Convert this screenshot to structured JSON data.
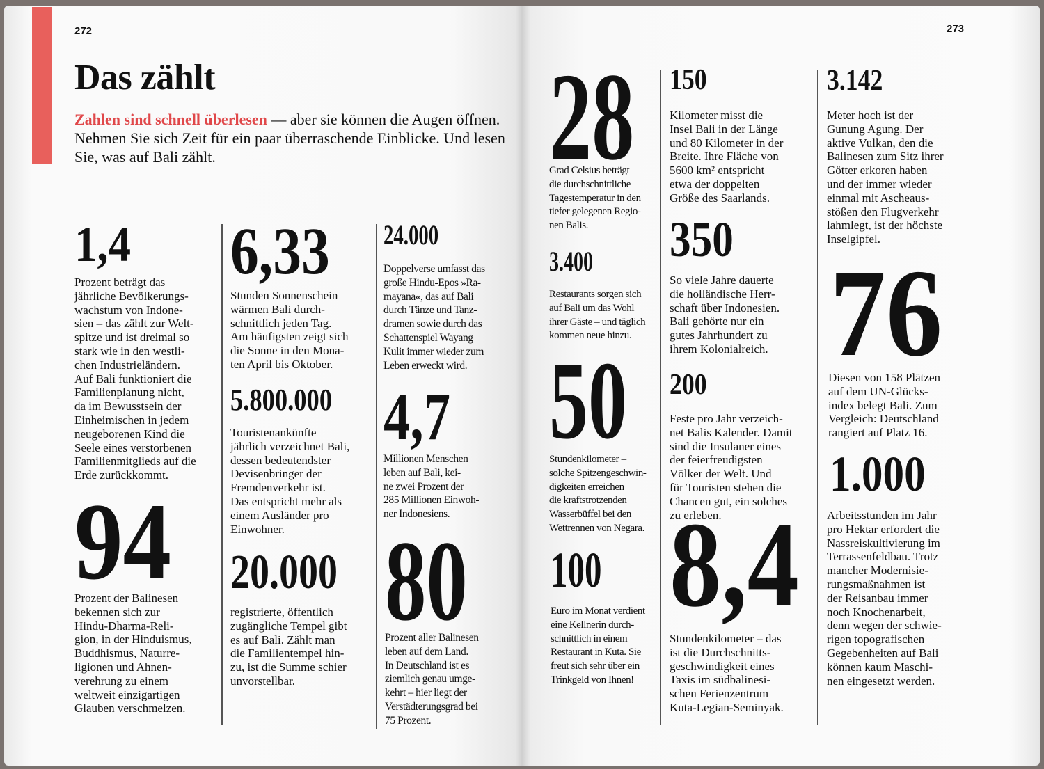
{
  "left_page": {
    "page_number": "272",
    "title": "Das zählt",
    "intro_highlight": "Zahlen sind schnell überlesen",
    "intro_rest": " — aber sie können die Augen öffnen. Nehmen Sie sich Zeit für ein paar überraschende Einblicke. Und lesen Sie, was auf Bali zählt.",
    "facts": [
      {
        "number": "1,4",
        "text": "Prozent beträgt das\njährliche Bevölkerungs-\nwachstum von Indone-\nsien – das zählt zur Welt-\nspitze und ist dreimal so\nstark wie in den westli-\nchen Industrieländern.\nAuf Bali funktioniert die\nFamilienplanung nicht,\nda im Bewusstsein der\nEinheimischen in jedem\nneugeborenen Kind die\nSeele eines verstorbenen\nFamilienmitglieds auf die\nErde zurückkommt."
      },
      {
        "number": "94",
        "text": "Prozent der Balinesen\nbekennen sich zur\nHindu-Dharma-Reli-\ngion, in der Hinduismus,\nBuddhismus, Naturre-\nligionen und Ahnen-\nverehrung zu einem\nweltweit einzigartigen\nGlauben verschmelzen."
      },
      {
        "number": "6,33",
        "text": "Stunden Sonnenschein\nwärmen Bali durch-\nschnittlich jeden Tag.\nAm häufigsten zeigt sich\ndie Sonne in den Mona-\nten April bis Oktober."
      },
      {
        "number": "5.800.000",
        "text": "Touristenankünfte\njährlich verzeichnet Bali,\ndessen bedeutendster\nDevisenbringer der\nFremdenverkehr ist.\nDas entspricht mehr als\neinem Ausländer pro\nEinwohner."
      },
      {
        "number": "20.000",
        "text": "registrierte, öffentlich\nzugängliche Tempel gibt\nes auf Bali. Zählt man\ndie Familientempel hin-\nzu, ist die Summe schier\nunvorstellbar."
      },
      {
        "number": "24.000",
        "text": "Doppelverse umfasst das\ngroße Hindu-Epos »Ra-\nmayana«, das auf Bali\ndurch Tänze und Tanz-\ndramen sowie durch das\nSchattenspiel Wayang\nKulit immer wieder zum\nLeben erweckt wird."
      },
      {
        "number": "4,7",
        "text": "Millionen Menschen\nleben auf Bali, kei-\nne zwei Prozent der\n285 Millionen Einwoh-\nner Indonesiens."
      },
      {
        "number": "80",
        "text": "Prozent aller Balinesen\nleben auf dem Land.\nIn Deutschland ist es\nziemlich genau umge-\nkehrt – hier liegt der\nVerstädterungsgrad bei\n75 Prozent."
      }
    ]
  },
  "right_page": {
    "page_number": "273",
    "facts": [
      {
        "number": "28",
        "text": "Grad Celsius beträgt\ndie durchschnittliche\nTagestemperatur in den\ntiefer gelegenen Regio-\nnen Balis."
      },
      {
        "number": "3.400",
        "text": "Restaurants sorgen sich\nauf Bali um das Wohl\nihrer Gäste – und täglich\nkommen neue hinzu."
      },
      {
        "number": "50",
        "text": "Stundenkilometer –\nsolche Spitzengeschwin-\ndigkeiten erreichen\ndie kraftstrotzenden\nWasserbüffel bei den\nWettrennen von Negara."
      },
      {
        "number": "100",
        "text": "Euro im Monat verdient\neine Kellnerin durch-\nschnittlich in einem\nRestaurant in Kuta. Sie\nfreut sich sehr über ein\nTrinkgeld von Ihnen!"
      },
      {
        "number": "150",
        "text": "Kilometer misst die\nInsel Bali in der Länge\nund 80 Kilometer in der\nBreite. Ihre Fläche von\n5600 km² entspricht\netwa der doppelten\nGröße des Saarlands."
      },
      {
        "number": "350",
        "text": "So viele Jahre dauerte\ndie holländische Herr-\nschaft über Indonesien.\nBali gehörte nur ein\ngutes Jahrhundert zu\nihrem Kolonialreich."
      },
      {
        "number": "200",
        "text": "Feste pro Jahr verzeich-\nnet Balis Kalender. Damit\nsind die Insulaner eines\nder feierfreudigsten\nVölker der Welt. Und\nfür Touristen stehen die\nChancen gut, ein solches\nzu erleben."
      },
      {
        "number": "8,4",
        "text": "Stundenkilometer – das\nist die Durchschnitts-\ngeschwindigkeit eines\nTaxis im südbalinesi-\nschen Ferienzentrum\nKuta-Legian-Seminyak."
      },
      {
        "number": "3.142",
        "text": "Meter hoch ist der\nGunung Agung. Der\naktive Vulkan, den die\nBalinesen zum Sitz ihrer\nGötter erkoren haben\nund der immer wieder\neinmal mit Ascheaus-\nstößen den Flugverkehr\nlahmlegt, ist der höchste\nInselgipfel."
      },
      {
        "number": "76",
        "text": "Diesen von 158 Plätzen\nauf dem UN-Glücks-\nindex belegt Bali. Zum\nVergleich: Deutschland\nrangiert auf Platz 16."
      },
      {
        "number": "1.000",
        "text": "Arbeitsstunden im Jahr\npro Hektar erfordert die\nNassreiskultivierung im\nTerrassenfeldbau. Trotz\nmancher Modernisie-\nrungsmaßnahmen ist\nder Reisanbau immer\nnoch Knochenarbeit,\ndenn wegen der schwie-\nrigen topografischen\nGegebenheiten auf Bali\nkönnen kaum Maschi-\nnen eingesetzt werden."
      }
    ]
  },
  "colors": {
    "accent": "#e8605c",
    "highlight_text": "#e0484a"
  }
}
